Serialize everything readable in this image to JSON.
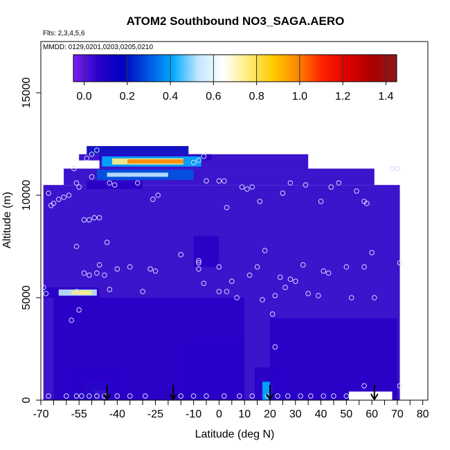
{
  "chart_data": {
    "type": "heatmap",
    "title": "ATOM2 Southbound NO3_SAGA.AERO",
    "notes": [
      "Flts: 2,3,4,5,6",
      "MMDD: 0129,0201,0203,0205,0210"
    ],
    "xlabel": "Latitude (deg N)",
    "ylabel": "Altitude (m)",
    "xlim": [
      -70,
      82
    ],
    "ylim": [
      0,
      17500
    ],
    "x_ticks": [
      -70,
      -55,
      -40,
      -25,
      -10,
      0,
      10,
      20,
      30,
      40,
      50,
      60,
      70,
      80
    ],
    "x_tick_labels": [
      "-70",
      "-55",
      "-40",
      "-25",
      "-10",
      "0",
      "10",
      "20",
      "30",
      "40",
      "50",
      "60",
      "70",
      "80"
    ],
    "x_minor_ticks": [
      -65,
      -60,
      -50,
      -45,
      -35,
      -30,
      -20,
      -15,
      -5,
      5,
      15,
      25,
      35,
      45,
      55,
      65,
      75
    ],
    "y_ticks": [
      0,
      5000,
      10000,
      15000
    ],
    "y_tick_labels": [
      "0",
      "5000",
      "10000",
      "15000"
    ],
    "colorbar": {
      "range": [
        -0.05,
        1.45
      ],
      "ticks": [
        0.0,
        0.2,
        0.4,
        0.6,
        0.8,
        1.0,
        1.2,
        1.4
      ],
      "tick_labels": [
        "0.0",
        "0.2",
        "0.4",
        "0.6",
        "0.8",
        "1.0",
        "1.2",
        "1.4"
      ],
      "colors": [
        "#7b20f0",
        "#2a00c8",
        "#0000c0",
        "#0055e0",
        "#00aaff",
        "#bfe6ff",
        "#ffffff",
        "#ffee80",
        "#ffcc00",
        "#ff8800",
        "#ff2200",
        "#e00000",
        "#aa0000",
        "#8b1a1a"
      ]
    },
    "background_fields": [
      {
        "x": [
          -69,
          71
        ],
        "y": [
          0,
          10500
        ],
        "value": 0.02
      },
      {
        "x": [
          -61,
          61
        ],
        "y": [
          10500,
          11300
        ],
        "value": 0.04
      },
      {
        "x": [
          -47,
          35
        ],
        "y": [
          11300,
          12000
        ],
        "value": 0.06
      },
      {
        "x": [
          -55,
          -3
        ],
        "y": [
          11700,
          12000
        ],
        "value": 0.1
      },
      {
        "x": [
          -52,
          -12
        ],
        "y": [
          12000,
          12400
        ],
        "value": 0.15
      }
    ],
    "patches": [
      {
        "x": [
          -46,
          -7
        ],
        "y": [
          11400,
          11900
        ],
        "value": 0.45
      },
      {
        "x": [
          -42,
          -14
        ],
        "y": [
          11500,
          11800
        ],
        "value": 0.75
      },
      {
        "x": [
          -36,
          -14
        ],
        "y": [
          11550,
          11750
        ],
        "value": 1.0
      },
      {
        "x": [
          -48,
          -10
        ],
        "y": [
          10750,
          11250
        ],
        "value": 0.3
      },
      {
        "x": [
          -44,
          -20
        ],
        "y": [
          10900,
          11100
        ],
        "value": 0.55
      },
      {
        "x": [
          -52,
          -30
        ],
        "y": [
          10300,
          10700
        ],
        "value": 0.1
      },
      {
        "x": [
          -69,
          -47
        ],
        "y": [
          5000,
          5500
        ],
        "value": 0.1
      },
      {
        "x": [
          -63,
          -48
        ],
        "y": [
          5100,
          5400
        ],
        "value": 0.5
      },
      {
        "x": [
          -58,
          -50
        ],
        "y": [
          5150,
          5350
        ],
        "value": 0.8
      },
      {
        "x": [
          -60,
          -38
        ],
        "y": [
          0,
          1600
        ],
        "value": 0.1
      },
      {
        "x": [
          -53,
          -43
        ],
        "y": [
          0,
          900
        ],
        "value": 0.3
      },
      {
        "x": [
          -49,
          -44
        ],
        "y": [
          0,
          500
        ],
        "value": 0.55
      },
      {
        "x": [
          14,
          26
        ],
        "y": [
          0,
          1600
        ],
        "value": 0.1
      },
      {
        "x": [
          17,
          21
        ],
        "y": [
          0,
          900
        ],
        "value": 0.4
      },
      {
        "x": [
          -15,
          10
        ],
        "y": [
          0,
          3000
        ],
        "value": 0.07
      },
      {
        "x": [
          -65,
          10
        ],
        "y": [
          0,
          5000
        ],
        "value": 0.05
      },
      {
        "x": [
          20,
          70
        ],
        "y": [
          0,
          4000
        ],
        "value": 0.04
      },
      {
        "x": [
          -10,
          0
        ],
        "y": [
          6500,
          8000
        ],
        "value": 0.08
      }
    ],
    "blank_regions": [
      {
        "x": [
          51,
          68
        ],
        "y": [
          0,
          420
        ]
      }
    ],
    "observations": [
      {
        "x": -67,
        "y": 10100
      },
      {
        "x": -66,
        "y": 9500
      },
      {
        "x": -65,
        "y": 9600
      },
      {
        "x": -63,
        "y": 9800
      },
      {
        "x": -61,
        "y": 9900
      },
      {
        "x": -59,
        "y": 10000
      },
      {
        "x": -57,
        "y": 11300
      },
      {
        "x": -56,
        "y": 10600
      },
      {
        "x": -55,
        "y": 10400
      },
      {
        "x": -53,
        "y": 8800
      },
      {
        "x": -51,
        "y": 8800
      },
      {
        "x": -49,
        "y": 8900
      },
      {
        "x": -47,
        "y": 8900
      },
      {
        "x": -44,
        "y": 7700
      },
      {
        "x": -43,
        "y": 10600
      },
      {
        "x": -41,
        "y": 10500
      },
      {
        "x": -52,
        "y": 11800
      },
      {
        "x": -50,
        "y": 12000
      },
      {
        "x": -48,
        "y": 12200
      },
      {
        "x": -50,
        "y": 10900
      },
      {
        "x": -69,
        "y": 5500
      },
      {
        "x": -68,
        "y": 5200
      },
      {
        "x": -56,
        "y": 7500
      },
      {
        "x": -53,
        "y": 6200
      },
      {
        "x": -51,
        "y": 6100
      },
      {
        "x": -48,
        "y": 6200
      },
      {
        "x": -47,
        "y": 6600
      },
      {
        "x": -45,
        "y": 6100
      },
      {
        "x": -56,
        "y": 5300
      },
      {
        "x": -55,
        "y": 4400
      },
      {
        "x": -58,
        "y": 3900
      },
      {
        "x": -40,
        "y": 6400
      },
      {
        "x": -35,
        "y": 6500
      },
      {
        "x": -43,
        "y": 5400
      },
      {
        "x": -30,
        "y": 5300
      },
      {
        "x": -27,
        "y": 6400
      },
      {
        "x": -25,
        "y": 6300
      },
      {
        "x": -32,
        "y": 10600
      },
      {
        "x": -26,
        "y": 9800
      },
      {
        "x": -24,
        "y": 10000
      },
      {
        "x": -15,
        "y": 7100
      },
      {
        "x": -8,
        "y": 6800
      },
      {
        "x": -8,
        "y": 6700
      },
      {
        "x": -8,
        "y": 6400
      },
      {
        "x": -6,
        "y": 5700
      },
      {
        "x": -5,
        "y": 10700
      },
      {
        "x": 0,
        "y": 10700
      },
      {
        "x": 2,
        "y": 10700
      },
      {
        "x": 3,
        "y": 9400
      },
      {
        "x": 0,
        "y": 6500
      },
      {
        "x": 0,
        "y": 5300
      },
      {
        "x": 3,
        "y": 5300
      },
      {
        "x": 5,
        "y": 5800
      },
      {
        "x": 7,
        "y": 5000
      },
      {
        "x": 9,
        "y": 10400
      },
      {
        "x": 11,
        "y": 10300
      },
      {
        "x": 13,
        "y": 10400
      },
      {
        "x": 16,
        "y": 9700
      },
      {
        "x": 18,
        "y": 7300
      },
      {
        "x": 12,
        "y": 6100
      },
      {
        "x": 15,
        "y": 6500
      },
      {
        "x": 17,
        "y": 4900
      },
      {
        "x": 22,
        "y": 5100
      },
      {
        "x": 24,
        "y": 6000
      },
      {
        "x": 26,
        "y": 5500
      },
      {
        "x": 28,
        "y": 5900
      },
      {
        "x": 30,
        "y": 5800
      },
      {
        "x": 21,
        "y": 4200
      },
      {
        "x": 22,
        "y": 2600
      },
      {
        "x": 25,
        "y": 10100
      },
      {
        "x": 28,
        "y": 10600
      },
      {
        "x": 34,
        "y": 10500
      },
      {
        "x": 33,
        "y": 6600
      },
      {
        "x": 35,
        "y": 5200
      },
      {
        "x": 41,
        "y": 6300
      },
      {
        "x": 39,
        "y": 5100
      },
      {
        "x": 43,
        "y": 6200
      },
      {
        "x": 40,
        "y": 9700
      },
      {
        "x": 44,
        "y": 10400
      },
      {
        "x": 47,
        "y": 10600
      },
      {
        "x": 50,
        "y": 6500
      },
      {
        "x": 52,
        "y": 5000
      },
      {
        "x": 54,
        "y": 10200
      },
      {
        "x": 57,
        "y": 9700
      },
      {
        "x": 58,
        "y": 9600
      },
      {
        "x": 61,
        "y": 5000
      },
      {
        "x": 57,
        "y": 6500
      },
      {
        "x": 60,
        "y": 7200
      },
      {
        "x": 68,
        "y": 11300
      },
      {
        "x": 70,
        "y": 11300
      },
      {
        "x": 71,
        "y": 6700
      },
      {
        "x": 71,
        "y": 700
      },
      {
        "x": -10,
        "y": 11600
      },
      {
        "x": -8,
        "y": 11700
      },
      {
        "x": -6,
        "y": 11900
      },
      {
        "x": -67,
        "y": 200
      },
      {
        "x": -60,
        "y": 200
      },
      {
        "x": -56,
        "y": 200
      },
      {
        "x": -54,
        "y": 200
      },
      {
        "x": -51,
        "y": 200
      },
      {
        "x": -48,
        "y": 200
      },
      {
        "x": -45,
        "y": 200
      },
      {
        "x": -40,
        "y": 200
      },
      {
        "x": -35,
        "y": 200
      },
      {
        "x": -29,
        "y": 200
      },
      {
        "x": -15,
        "y": 200
      },
      {
        "x": -10,
        "y": 200
      },
      {
        "x": -5,
        "y": 200
      },
      {
        "x": 2,
        "y": 200
      },
      {
        "x": 8,
        "y": 200
      },
      {
        "x": 13,
        "y": 200
      },
      {
        "x": 19,
        "y": 200
      },
      {
        "x": 23,
        "y": 200
      },
      {
        "x": 27,
        "y": 200
      },
      {
        "x": 32,
        "y": 200
      },
      {
        "x": 36,
        "y": 200
      },
      {
        "x": 41,
        "y": 200
      },
      {
        "x": 45,
        "y": 200
      },
      {
        "x": 50,
        "y": 200
      },
      {
        "x": 57,
        "y": 700
      }
    ],
    "arrows": [
      {
        "x": -44,
        "y": 0
      },
      {
        "x": -18,
        "y": 0
      },
      {
        "x": 20,
        "y": 0
      },
      {
        "x": 61,
        "y": 0
      }
    ]
  }
}
